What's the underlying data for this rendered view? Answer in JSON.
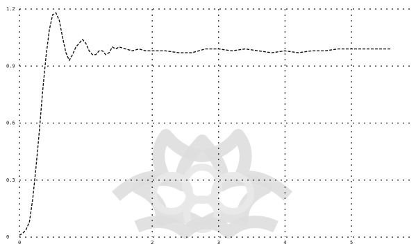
{
  "chart_data": {
    "type": "line",
    "title": "",
    "xlabel": "",
    "ylabel": "",
    "grid": true,
    "xlim": [
      0,
      5.9
    ],
    "ylim": [
      0,
      1.2
    ],
    "y_ticks": [
      0,
      0.3,
      0.6,
      0.9,
      1.2
    ],
    "x_ticks": [
      0,
      2,
      3,
      4,
      5
    ],
    "series": [
      {
        "x": [
          0,
          0.05,
          0.1,
          0.15,
          0.2,
          0.25,
          0.3,
          0.35,
          0.4,
          0.45,
          0.5,
          0.55,
          0.6,
          0.65,
          0.7,
          0.75,
          0.8,
          0.85,
          0.9,
          0.95,
          1.0,
          1.05,
          1.1,
          1.15,
          1.2,
          1.25,
          1.3,
          1.35,
          1.4,
          1.45,
          1.5,
          1.6,
          1.7,
          1.8,
          1.9,
          2.0,
          2.1,
          2.2,
          2.4,
          2.6,
          2.8,
          3.0,
          3.2,
          3.4,
          3.6,
          3.8,
          4.0,
          4.2,
          4.4,
          4.6,
          4.8,
          5.0,
          5.2,
          5.4,
          5.6
        ],
        "y": [
          0.01,
          0.02,
          0.04,
          0.08,
          0.2,
          0.37,
          0.56,
          0.77,
          0.95,
          1.09,
          1.17,
          1.18,
          1.14,
          1.05,
          0.97,
          0.93,
          0.96,
          1.0,
          1.02,
          1.04,
          1.02,
          0.98,
          0.96,
          0.96,
          0.98,
          0.98,
          0.96,
          0.97,
          1.0,
          0.99,
          1.0,
          0.99,
          0.98,
          0.99,
          0.98,
          0.98,
          0.98,
          0.98,
          0.97,
          0.97,
          0.99,
          0.99,
          0.98,
          0.99,
          0.98,
          0.97,
          0.98,
          0.97,
          0.98,
          0.98,
          0.99,
          0.99,
          0.99,
          0.99,
          0.99
        ]
      }
    ]
  }
}
